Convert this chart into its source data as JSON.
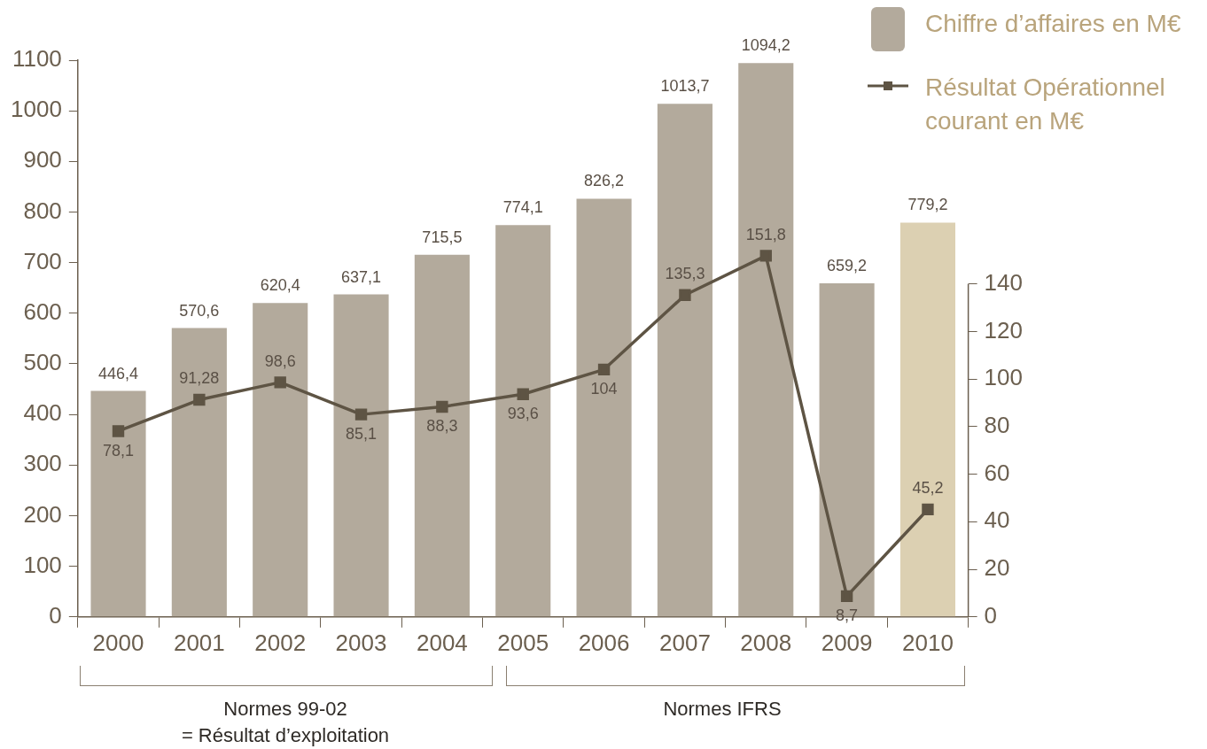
{
  "chart_data": {
    "type": "bar",
    "categories": [
      "2000",
      "2001",
      "2002",
      "2003",
      "2004",
      "2005",
      "2006",
      "2007",
      "2008",
      "2009",
      "2010"
    ],
    "series": [
      {
        "name": "Chiffre d’affaires en M€",
        "color": "#b3aa9c",
        "colors": [
          "#b3aa9c",
          "#b3aa9c",
          "#b3aa9c",
          "#b3aa9c",
          "#b3aa9c",
          "#b3aa9c",
          "#b3aa9c",
          "#b3aa9c",
          "#b3aa9c",
          "#b3aa9c",
          "#dcd0b2"
        ],
        "values": [
          446.4,
          570.6,
          620.4,
          637.1,
          715.5,
          774.1,
          826.2,
          1013.7,
          1094.2,
          659.2,
          779.2
        ],
        "value_labels": [
          "446,4",
          "570,6",
          "620,4",
          "637,1",
          "715,5",
          "774,1",
          "826,2",
          "1013,7",
          "1094,2",
          "659,2",
          "779,2"
        ]
      },
      {
        "name": "Résultat Opérationnel courant en M€",
        "type": "line",
        "axis": "y2",
        "color": "#5e5444",
        "values": [
          78.1,
          91.28,
          98.6,
          85.1,
          88.3,
          93.6,
          104,
          135.3,
          151.8,
          8.7,
          45.2
        ],
        "value_labels": [
          "78,1",
          "91,28",
          "98,6",
          "85,1",
          "88,3",
          "93,6",
          "104",
          "135,3",
          "151,8",
          "8,7",
          "45,2"
        ]
      }
    ],
    "ylim": [
      0,
      1100
    ],
    "yticks": [
      0,
      100,
      200,
      300,
      400,
      500,
      600,
      700,
      800,
      900,
      1000,
      1100
    ],
    "y2lim": [
      0,
      234
    ],
    "y2ticks": [
      0,
      20,
      40,
      60,
      80,
      100,
      120,
      140
    ],
    "annotations": [
      "Normes 99-02",
      "= Résultat d’exploitation",
      "Normes IFRS"
    ],
    "grid": false,
    "legend": "top right",
    "marker": "square",
    "line_style": "solid"
  }
}
